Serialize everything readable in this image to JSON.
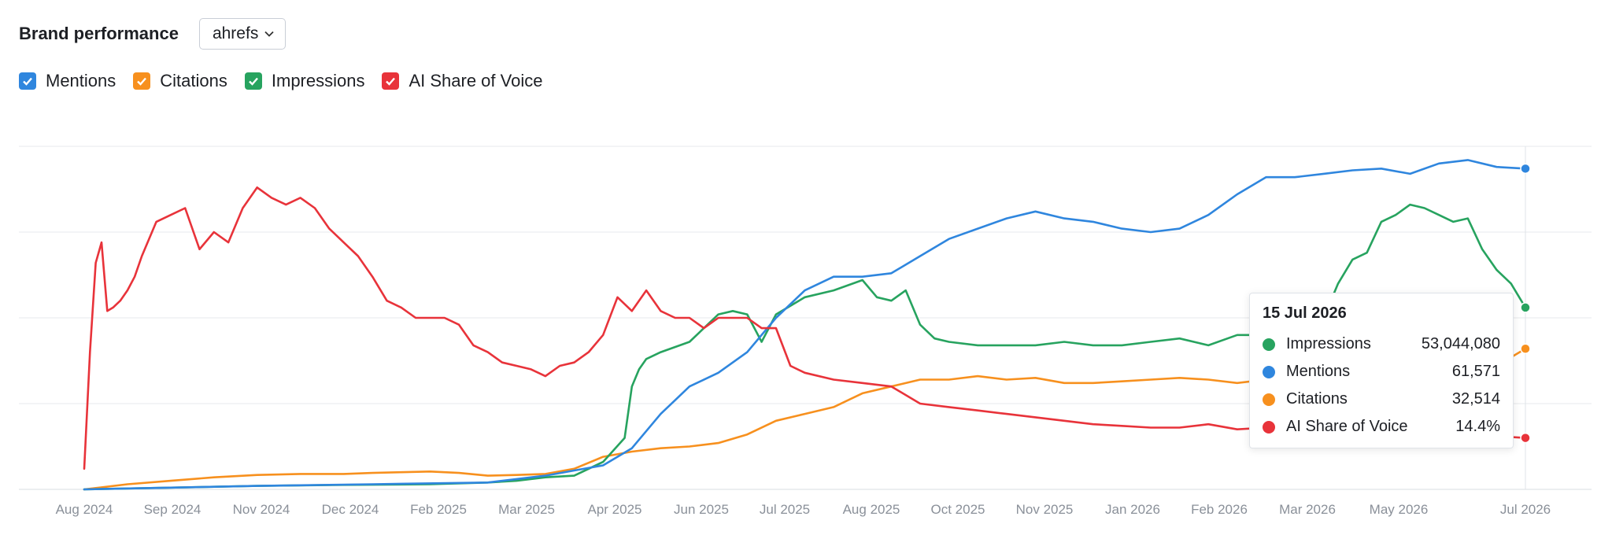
{
  "header": {
    "title": "Brand performance",
    "brand_select": "ahrefs"
  },
  "legend": [
    {
      "label": "Mentions",
      "color": "#2f86de"
    },
    {
      "label": "Citations",
      "color": "#f7901e"
    },
    {
      "label": "Impressions",
      "color": "#27a35f"
    },
    {
      "label": "AI Share of Voice",
      "color": "#e8333a"
    }
  ],
  "tooltip": {
    "date": "15 Jul 2026",
    "rows": [
      {
        "name": "Impressions",
        "value": "53,044,080",
        "color": "#27a35f"
      },
      {
        "name": "Mentions",
        "value": "61,571",
        "color": "#2f86de"
      },
      {
        "name": "Citations",
        "value": "32,514",
        "color": "#f7901e"
      },
      {
        "name": "AI Share of Voice",
        "value": "14.4%",
        "color": "#e8333a"
      }
    ]
  },
  "chart_data": {
    "type": "line",
    "grid": true,
    "y_axis_labels": "hidden",
    "x_ticks": [
      "Aug 2024",
      "Sep 2024",
      "Nov 2024",
      "Dec 2024",
      "Feb 2025",
      "Mar 2025",
      "Apr 2025",
      "Jun 2025",
      "Jul 2025",
      "Aug 2025",
      "Oct 2025",
      "Nov 2025",
      "Jan 2026",
      "Feb 2026",
      "Mar 2026",
      "May 2026",
      "Jul 2026"
    ],
    "y_scale": "each series normalized to 0–100 of the chart height",
    "ylim": [
      0,
      100
    ],
    "series": [
      {
        "name": "Mentions",
        "color": "#2f86de",
        "x": [
          0,
          0.06,
          0.12,
          0.2,
          0.28,
          0.3,
          0.32,
          0.34,
          0.36,
          0.38,
          0.4,
          0.42,
          0.44,
          0.46,
          0.48,
          0.5,
          0.52,
          0.54,
          0.56,
          0.58,
          0.6,
          0.62,
          0.64,
          0.66,
          0.68,
          0.7,
          0.72,
          0.74,
          0.76,
          0.78,
          0.8,
          0.82,
          0.84,
          0.86,
          0.88,
          0.9,
          0.92,
          0.94,
          0.96,
          0.98,
          1.0
        ],
        "values": [
          0,
          0.5,
          1,
          1.5,
          2,
          3,
          4,
          5.5,
          7,
          12,
          22,
          30,
          34,
          40,
          50,
          58,
          62,
          62,
          63,
          68,
          73,
          76,
          79,
          81,
          79,
          78,
          76,
          75,
          76,
          80,
          86,
          91,
          91,
          92,
          93,
          93.5,
          92,
          95,
          96,
          94,
          93.5
        ]
      },
      {
        "name": "Citations",
        "color": "#f7901e",
        "x": [
          0,
          0.03,
          0.06,
          0.09,
          0.12,
          0.15,
          0.18,
          0.2,
          0.22,
          0.24,
          0.26,
          0.28,
          0.3,
          0.32,
          0.34,
          0.36,
          0.38,
          0.4,
          0.42,
          0.44,
          0.46,
          0.48,
          0.5,
          0.52,
          0.54,
          0.56,
          0.58,
          0.6,
          0.62,
          0.64,
          0.66,
          0.68,
          0.7,
          0.72,
          0.74,
          0.76,
          0.78,
          0.8,
          0.82,
          0.84,
          0.86,
          0.88,
          0.9,
          0.92,
          0.94,
          0.96,
          0.98,
          1.0
        ],
        "values": [
          0,
          1.5,
          2.5,
          3.5,
          4.2,
          4.5,
          4.5,
          4.8,
          5,
          5.2,
          4.8,
          4,
          4.2,
          4.5,
          6,
          9.5,
          11,
          12,
          12.5,
          13.5,
          16,
          20,
          22,
          24,
          28,
          30,
          32,
          32,
          33,
          32,
          32.5,
          31,
          31,
          31.5,
          32,
          32.5,
          32,
          31,
          32,
          33,
          33.5,
          34,
          34.5,
          35.5,
          35,
          35,
          36,
          41
        ]
      },
      {
        "name": "Impressions",
        "color": "#27a35f",
        "x": [
          0,
          0.06,
          0.12,
          0.18,
          0.24,
          0.28,
          0.3,
          0.32,
          0.34,
          0.36,
          0.375,
          0.38,
          0.385,
          0.39,
          0.4,
          0.42,
          0.44,
          0.45,
          0.46,
          0.47,
          0.48,
          0.5,
          0.52,
          0.54,
          0.55,
          0.56,
          0.57,
          0.58,
          0.59,
          0.6,
          0.62,
          0.64,
          0.66,
          0.68,
          0.7,
          0.72,
          0.74,
          0.76,
          0.78,
          0.8,
          0.82,
          0.84,
          0.86,
          0.87,
          0.88,
          0.89,
          0.9,
          0.91,
          0.92,
          0.93,
          0.94,
          0.95,
          0.96,
          0.97,
          0.98,
          0.99,
          1.0
        ],
        "values": [
          0,
          0.5,
          1,
          1.3,
          1.5,
          2,
          2.5,
          3.5,
          4,
          8,
          15,
          30,
          35,
          38,
          40,
          43,
          51,
          52,
          51,
          43,
          51,
          56,
          58,
          61,
          56,
          55,
          58,
          48,
          44,
          43,
          42,
          42,
          42,
          43,
          42,
          42,
          43,
          44,
          42,
          45,
          45,
          49,
          50,
          60,
          67,
          69,
          78,
          80,
          83,
          82,
          80,
          78,
          79,
          70,
          64,
          60,
          53
        ]
      },
      {
        "name": "AI Share of Voice",
        "color": "#e8333a",
        "x": [
          0,
          0.004,
          0.008,
          0.012,
          0.016,
          0.02,
          0.025,
          0.03,
          0.035,
          0.04,
          0.05,
          0.06,
          0.07,
          0.08,
          0.09,
          0.1,
          0.11,
          0.12,
          0.13,
          0.14,
          0.15,
          0.16,
          0.17,
          0.18,
          0.19,
          0.2,
          0.21,
          0.22,
          0.23,
          0.24,
          0.25,
          0.26,
          0.27,
          0.28,
          0.29,
          0.3,
          0.31,
          0.32,
          0.33,
          0.34,
          0.35,
          0.36,
          0.37,
          0.38,
          0.39,
          0.4,
          0.41,
          0.42,
          0.43,
          0.44,
          0.45,
          0.46,
          0.47,
          0.48,
          0.49,
          0.5,
          0.52,
          0.54,
          0.56,
          0.58,
          0.6,
          0.62,
          0.64,
          0.66,
          0.68,
          0.7,
          0.72,
          0.74,
          0.76,
          0.78,
          0.8,
          0.82,
          0.84,
          0.86,
          0.88,
          0.9,
          0.92,
          0.94,
          0.96,
          0.98,
          1.0
        ],
        "values": [
          6,
          40,
          66,
          72,
          52,
          53,
          55,
          58,
          62,
          68,
          78,
          80,
          82,
          70,
          75,
          72,
          82,
          88,
          85,
          83,
          85,
          82,
          76,
          72,
          68,
          62,
          55,
          53,
          50,
          50,
          50,
          48,
          42,
          40,
          37,
          36,
          35,
          33,
          36,
          37,
          40,
          45,
          56,
          52,
          58,
          52,
          50,
          50,
          47,
          50,
          50,
          50,
          47,
          47,
          36,
          34,
          32,
          31,
          30,
          25,
          24,
          23,
          22,
          21,
          20,
          19,
          18.5,
          18,
          18,
          19,
          17.5,
          18,
          17.5,
          18,
          17,
          16.5,
          17,
          16,
          16,
          15.5,
          15
        ]
      }
    ]
  }
}
